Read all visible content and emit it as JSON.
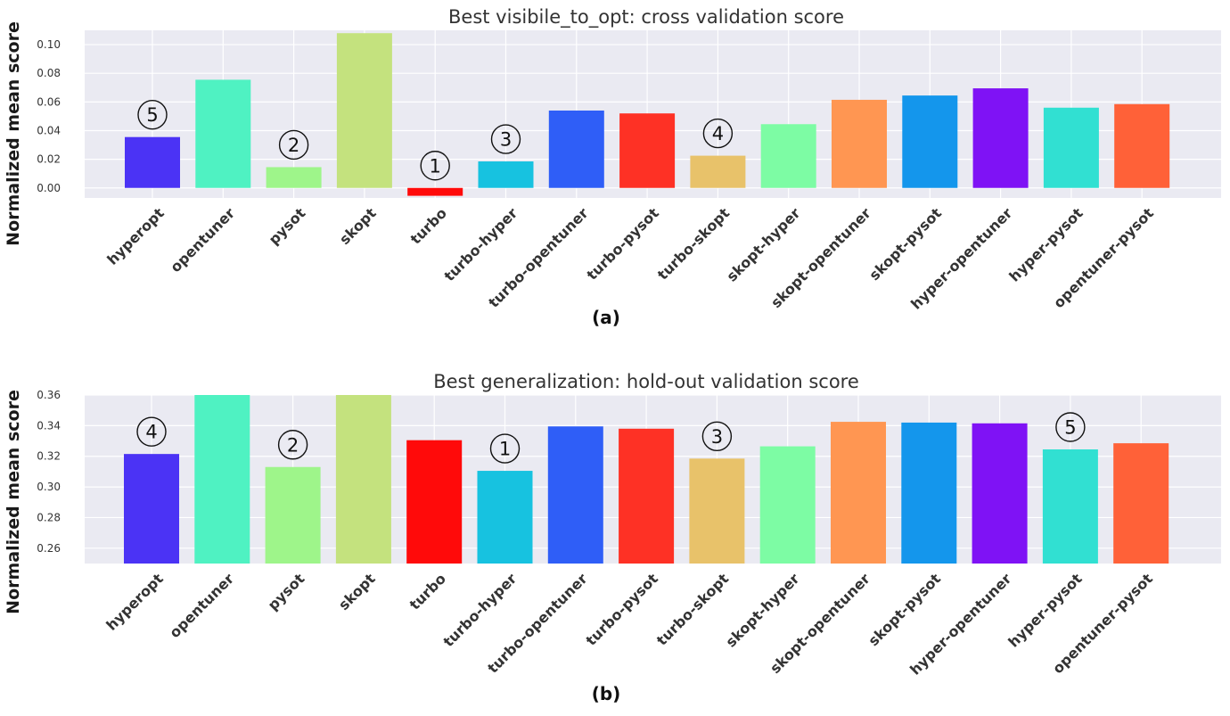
{
  "chart_data": [
    {
      "type": "bar",
      "title": "Best visibile_to_opt: cross validation score",
      "ylabel": "Normalized mean score",
      "xlabel": "",
      "caption": "(a)",
      "ylim": [
        -0.007,
        0.11
      ],
      "yticks": [
        0.0,
        0.02,
        0.04,
        0.06,
        0.08,
        0.1
      ],
      "ytick_labels": [
        "0.00",
        "0.02",
        "0.04",
        "0.06",
        "0.08",
        "0.10"
      ],
      "grid": true,
      "categories": [
        "hyperopt",
        "opentuner",
        "pysot",
        "skopt",
        "turbo",
        "turbo-hyper",
        "turbo-opentuner",
        "turbo-pysot",
        "turbo-skopt",
        "skopt-hyper",
        "skopt-opentuner",
        "skopt-pysot",
        "hyper-opentuner",
        "hyper-pysot",
        "opentuner-pysot"
      ],
      "values": [
        0.0355,
        0.0755,
        0.0145,
        0.108,
        -0.0055,
        0.0185,
        0.054,
        0.052,
        0.0225,
        0.0445,
        0.0615,
        0.0645,
        0.0695,
        0.056,
        0.0585
      ],
      "colors": [
        "#4b33f5",
        "#4ff2c2",
        "#9ef58a",
        "#c4e27e",
        "#ff0a0a",
        "#17c2e0",
        "#2f5ef7",
        "#fe3125",
        "#e8c26a",
        "#7dfca4",
        "#ff9652",
        "#1496ec",
        "#7f12f5",
        "#31e0d2",
        "#ff6138"
      ],
      "annotations": [
        {
          "category": "turbo",
          "rank": "1"
        },
        {
          "category": "pysot",
          "rank": "2"
        },
        {
          "category": "turbo-hyper",
          "rank": "3"
        },
        {
          "category": "turbo-skopt",
          "rank": "4"
        },
        {
          "category": "hyperopt",
          "rank": "5"
        }
      ]
    },
    {
      "type": "bar",
      "title": "Best generalization: hold-out validation score",
      "ylabel": "Normalized mean score",
      "xlabel": "",
      "caption": "(b)",
      "ylim": [
        0.25,
        0.36
      ],
      "yticks": [
        0.26,
        0.28,
        0.3,
        0.32,
        0.34,
        0.36
      ],
      "ytick_labels": [
        "0.26",
        "0.28",
        "0.30",
        "0.32",
        "0.34",
        "0.36"
      ],
      "grid": true,
      "categories": [
        "hyperopt",
        "opentuner",
        "pysot",
        "skopt",
        "turbo",
        "turbo-hyper",
        "turbo-opentuner",
        "turbo-pysot",
        "turbo-skopt",
        "skopt-hyper",
        "skopt-opentuner",
        "skopt-pysot",
        "hyper-opentuner",
        "hyper-pysot",
        "opentuner-pysot"
      ],
      "values": [
        0.3215,
        0.36,
        0.313,
        0.36,
        0.3305,
        0.3105,
        0.3395,
        0.338,
        0.3185,
        0.3265,
        0.3425,
        0.342,
        0.3415,
        0.3245,
        0.3285
      ],
      "colors": [
        "#4b33f5",
        "#4ff2c2",
        "#9ef58a",
        "#c4e27e",
        "#ff0a0a",
        "#17c2e0",
        "#2f5ef7",
        "#fe3125",
        "#e8c26a",
        "#7dfca4",
        "#ff9652",
        "#1496ec",
        "#7f12f5",
        "#31e0d2",
        "#ff6138"
      ],
      "annotations": [
        {
          "category": "turbo-hyper",
          "rank": "1"
        },
        {
          "category": "pysot",
          "rank": "2"
        },
        {
          "category": "turbo-skopt",
          "rank": "3"
        },
        {
          "category": "hyperopt",
          "rank": "4"
        },
        {
          "category": "hyper-pysot",
          "rank": "5"
        }
      ]
    }
  ]
}
